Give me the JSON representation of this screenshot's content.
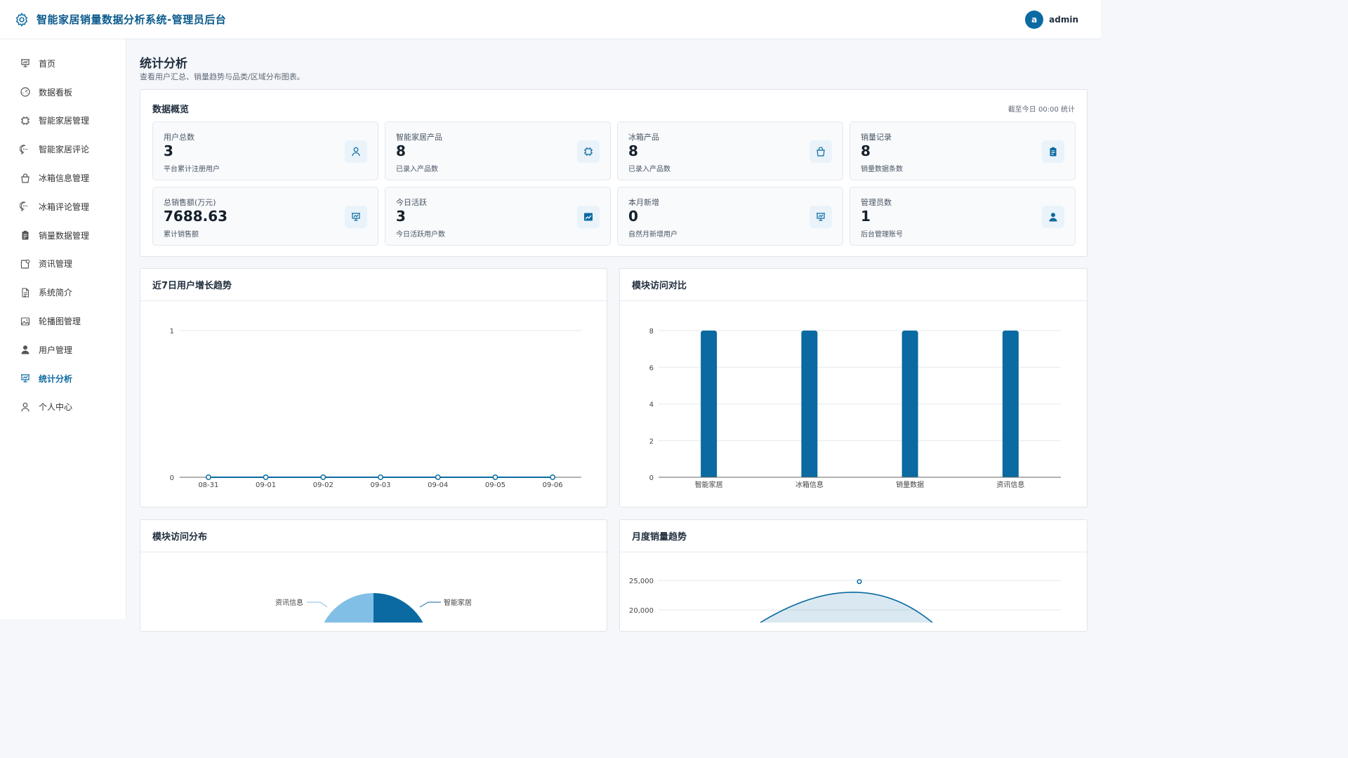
{
  "header": {
    "title": "智能家居销量数据分析系统-管理员后台",
    "avatar_letter": "a",
    "username": "admin"
  },
  "sidebar": {
    "items": [
      {
        "label": "首页",
        "icon": "presentation-icon"
      },
      {
        "label": "数据看板",
        "icon": "gauge-icon"
      },
      {
        "label": "智能家居管理",
        "icon": "chip-icon"
      },
      {
        "label": "智能家居评论",
        "icon": "comment-icon"
      },
      {
        "label": "冰箱信息管理",
        "icon": "bag-icon"
      },
      {
        "label": "冰箱评论管理",
        "icon": "comment-icon"
      },
      {
        "label": "销量数据管理",
        "icon": "clipboard-icon"
      },
      {
        "label": "资讯管理",
        "icon": "news-icon"
      },
      {
        "label": "系统简介",
        "icon": "document-icon"
      },
      {
        "label": "轮播图管理",
        "icon": "image-icon"
      },
      {
        "label": "用户管理",
        "icon": "user-filled-icon"
      },
      {
        "label": "统计分析",
        "icon": "presentation-icon",
        "active": true
      },
      {
        "label": "个人中心",
        "icon": "user-icon"
      }
    ]
  },
  "page": {
    "title": "统计分析",
    "subtitle": "查看用户汇总、销量趋势与品类/区域分布图表。"
  },
  "overview": {
    "title": "数据概览",
    "note": "截至今日 00:00 统计",
    "stats": [
      {
        "label": "用户总数",
        "value": "3",
        "desc": "平台累计注册用户",
        "icon": "user-icon"
      },
      {
        "label": "智能家居产品",
        "value": "8",
        "desc": "已录入产品数",
        "icon": "chip-icon"
      },
      {
        "label": "冰箱产品",
        "value": "8",
        "desc": "已录入产品数",
        "icon": "bag-icon"
      },
      {
        "label": "销量记录",
        "value": "8",
        "desc": "销量数据条数",
        "icon": "clipboard-icon"
      },
      {
        "label": "总销售额(万元)",
        "value": "7688.63",
        "desc": "累计销售额",
        "icon": "presentation-icon"
      },
      {
        "label": "今日活跃",
        "value": "3",
        "desc": "今日活跃用户数",
        "icon": "trend-icon"
      },
      {
        "label": "本月新增",
        "value": "0",
        "desc": "自然月新增用户",
        "icon": "presentation-icon"
      },
      {
        "label": "管理员数",
        "value": "1",
        "desc": "后台管理账号",
        "icon": "user-filled-icon"
      }
    ]
  },
  "cards": {
    "growth_title": "近7日用户增长趋势",
    "module_compare_title": "模块访问对比",
    "module_dist_title": "模块访问分布",
    "monthly_title": "月度销量趋势"
  },
  "colors": {
    "primary": "#0a6aa1",
    "light": "#82bfe6"
  },
  "chart_data": [
    {
      "type": "line",
      "title": "近7日用户增长趋势",
      "x": [
        "08-31",
        "09-01",
        "09-02",
        "09-03",
        "09-04",
        "09-05",
        "09-06"
      ],
      "series": [
        {
          "values": [
            0,
            0,
            0,
            0,
            0,
            0,
            0
          ]
        }
      ],
      "yticks": [
        "0",
        "1"
      ],
      "ylim": [
        0,
        1
      ]
    },
    {
      "type": "bar",
      "title": "模块访问对比",
      "categories": [
        "智能家居",
        "冰箱信息",
        "销量数据",
        "资讯信息"
      ],
      "values": [
        8,
        8,
        8,
        8
      ],
      "yticks": [
        "0",
        "2",
        "4",
        "6",
        "8"
      ],
      "ylim": [
        0,
        8
      ]
    },
    {
      "type": "pie",
      "title": "模块访问分布",
      "labels": [
        "智能家居",
        "资讯信息"
      ],
      "visible_slices": [
        {
          "label": "智能家居",
          "color": "#0a6aa1"
        },
        {
          "label": "资讯信息",
          "color": "#82bfe6"
        }
      ]
    },
    {
      "type": "area",
      "title": "月度销量趋势",
      "yticks": [
        "20,000",
        "25,000"
      ],
      "peak_value": 24800
    }
  ]
}
